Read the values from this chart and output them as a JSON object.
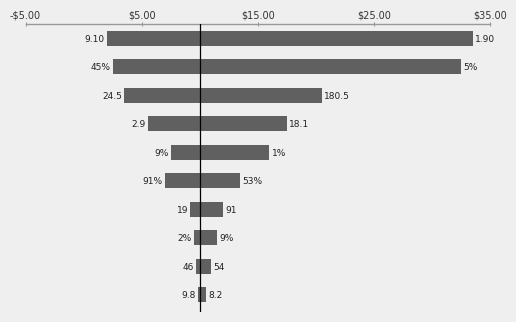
{
  "xlim": [
    -5,
    35
  ],
  "xticks": [
    -5,
    5,
    15,
    25,
    35
  ],
  "xticklabels": [
    "-$5.00",
    "$5.00",
    "$15.00",
    "$25.00",
    "$35.00"
  ],
  "ref_line": 10,
  "bar_color": "#606060",
  "bar_height": 0.52,
  "bars": [
    {
      "left_label": "9.10",
      "right_label": "1.90",
      "bar_low": 2.0,
      "bar_high": 33.5
    },
    {
      "left_label": "45%",
      "right_label": "5%",
      "bar_low": 2.5,
      "bar_high": 32.5
    },
    {
      "left_label": "24.5",
      "right_label": "180.5",
      "bar_low": 3.5,
      "bar_high": 20.5
    },
    {
      "left_label": "2.9",
      "right_label": "18.1",
      "bar_low": 5.5,
      "bar_high": 17.5
    },
    {
      "left_label": "9%",
      "right_label": "1%",
      "bar_low": 7.5,
      "bar_high": 16.0
    },
    {
      "left_label": "91%",
      "right_label": "53%",
      "bar_low": 7.0,
      "bar_high": 13.5
    },
    {
      "left_label": "19",
      "right_label": "91",
      "bar_low": 9.2,
      "bar_high": 12.0
    },
    {
      "left_label": "2%",
      "right_label": "9%",
      "bar_low": 9.5,
      "bar_high": 11.5
    },
    {
      "left_label": "46",
      "right_label": "54",
      "bar_low": 9.7,
      "bar_high": 11.0
    },
    {
      "left_label": "9.8",
      "right_label": "8.2",
      "bar_low": 9.85,
      "bar_high": 10.5
    }
  ],
  "background_color": "#efefef",
  "spine_color": "#999999",
  "label_fontsize": 6.5,
  "tick_fontsize": 7
}
